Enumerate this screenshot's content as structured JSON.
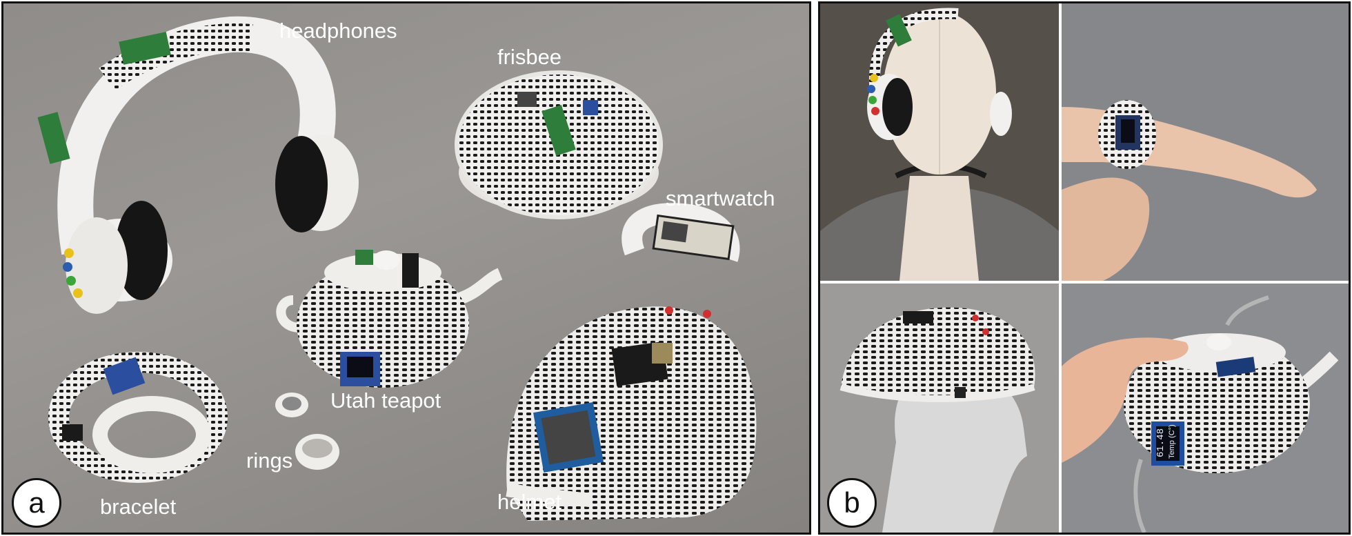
{
  "panel_a": {
    "badge": "a",
    "labels": {
      "headphones": "headphones",
      "frisbee": "frisbee",
      "smartwatch": "smartwatch",
      "utah_teapot": "Utah teapot",
      "rings": "rings",
      "bracelet": "bracelet",
      "helmet": "helmet"
    }
  },
  "panel_b": {
    "badge": "b",
    "teapot_display_text": "Temp (C°)",
    "teapot_display_value": "61.48"
  },
  "colors": {
    "background_gray": "#918e8b",
    "object_white": "#f2f0ee",
    "print_black": "#1a1a1a",
    "pcb_green": "#2f7d3a",
    "pcb_blue": "#2b4f9e",
    "label_white": "#ffffff"
  }
}
